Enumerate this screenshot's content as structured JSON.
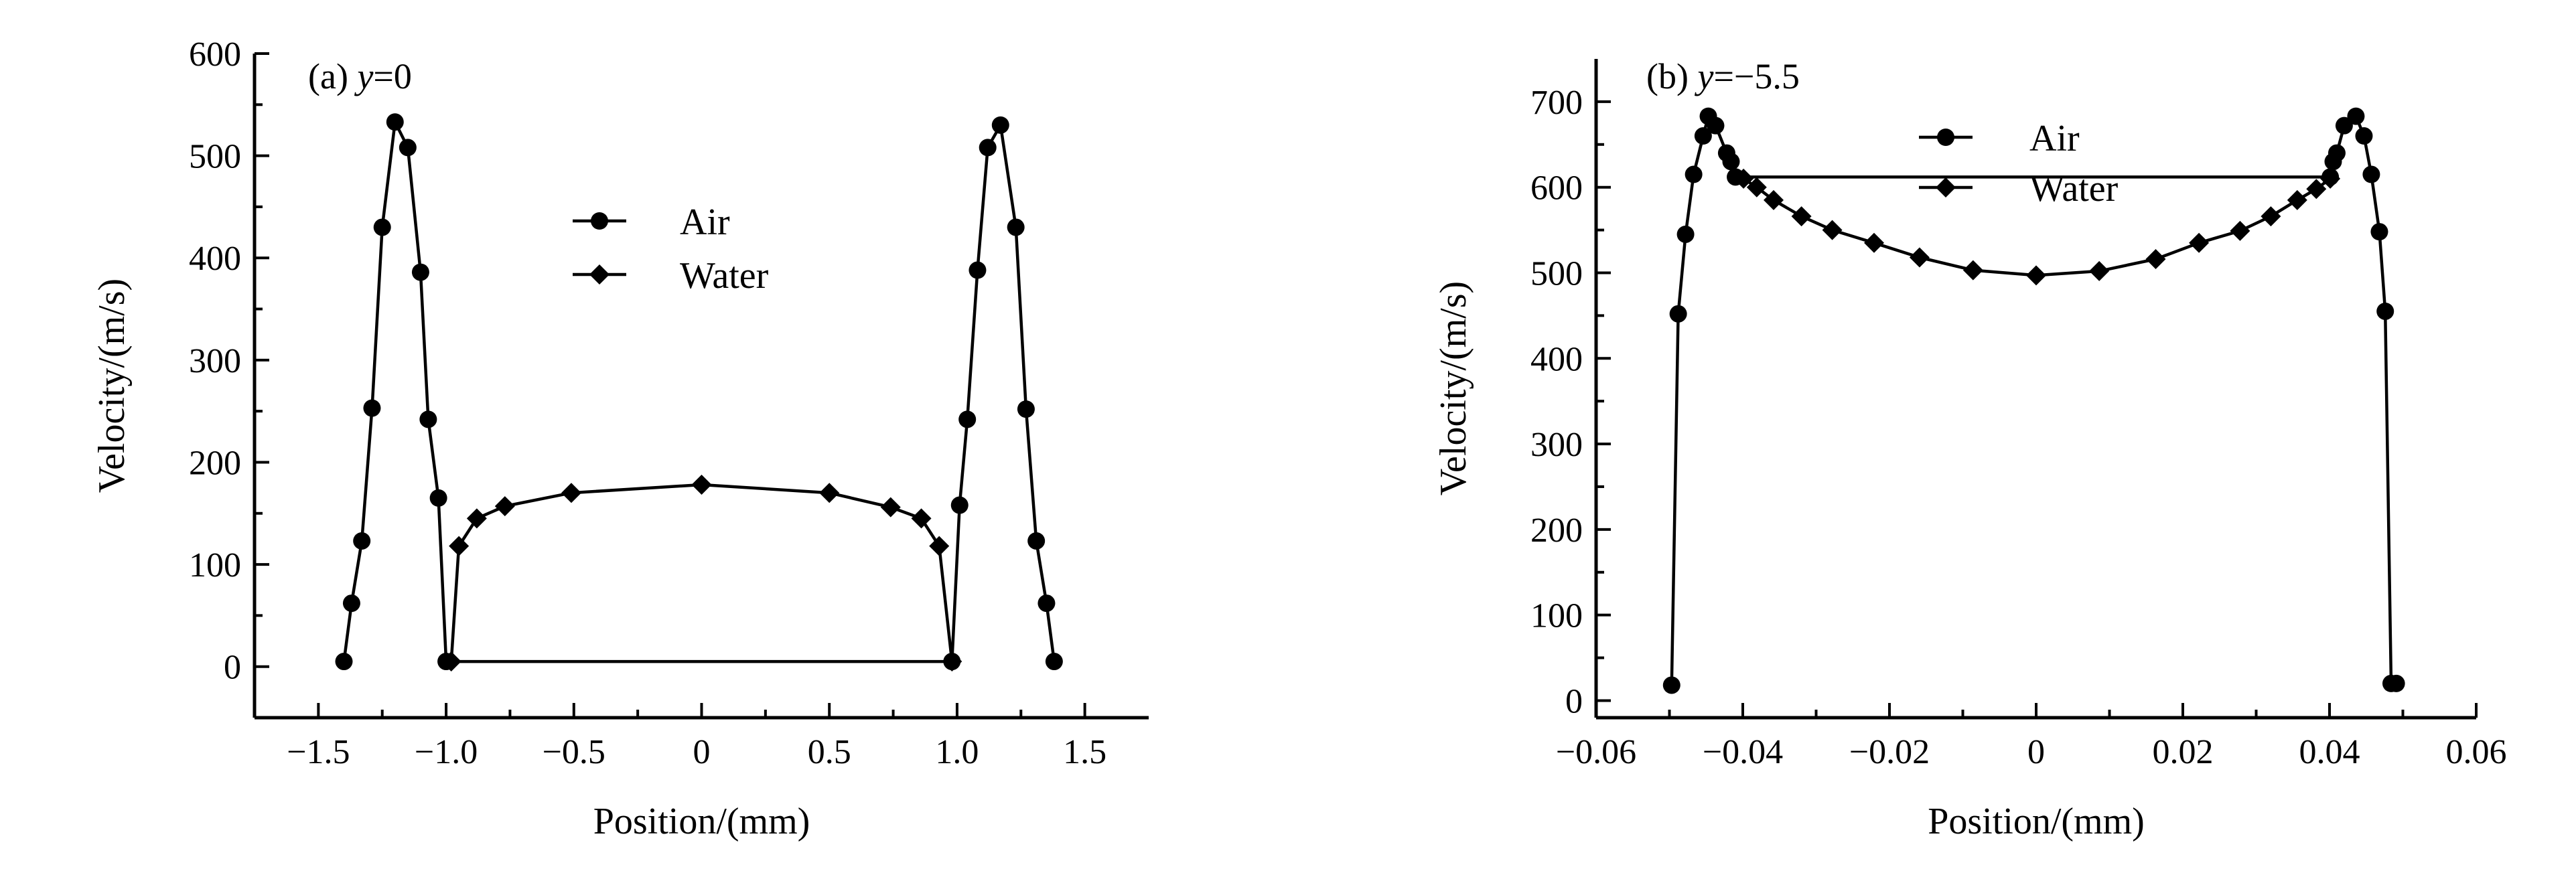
{
  "chart_data": [
    {
      "type": "line",
      "panel_label": "(a) y=0",
      "panel_label_parts": {
        "prefix": "(a) ",
        "var": "y",
        "suffix": "=0"
      },
      "xlabel": "Position/(mm)",
      "ylabel": "Velocity/(m/s)",
      "xlim": [
        -1.75,
        1.75
      ],
      "ylim": [
        -50,
        600
      ],
      "xticks": [
        -1.5,
        -1.0,
        -0.5,
        0,
        0.5,
        1.0,
        1.5
      ],
      "xtick_labels": [
        "−1.5",
        "−1.0",
        "−0.5",
        "0",
        "0.5",
        "1.0",
        "1.5"
      ],
      "yticks": [
        0,
        100,
        200,
        300,
        400,
        500,
        600
      ],
      "ytick_labels": [
        "0",
        "100",
        "200",
        "300",
        "400",
        "500",
        "600"
      ],
      "legend_position": "center",
      "series": [
        {
          "name": "Air",
          "marker": "circle",
          "x": [
            -1.4,
            -1.37,
            -1.33,
            -1.29,
            -1.25,
            -1.2,
            -1.15,
            -1.1,
            -1.07,
            -1.03,
            -1.0,
            0.98,
            1.01,
            1.04,
            1.08,
            1.12,
            1.17,
            1.23,
            1.27,
            1.31,
            1.35,
            1.38
          ],
          "y": [
            5,
            62,
            123,
            253,
            430,
            533,
            508,
            386,
            242,
            165,
            5,
            5,
            158,
            242,
            388,
            508,
            530,
            430,
            252,
            123,
            62,
            5
          ]
        },
        {
          "name": "Water",
          "marker": "diamond",
          "x": [
            -0.98,
            -0.95,
            -0.88,
            -0.77,
            -0.51,
            0,
            0.5,
            0.74,
            0.86,
            0.93,
            0.98
          ],
          "y": [
            5,
            118,
            145,
            157,
            170,
            178,
            170,
            156,
            145,
            118,
            5
          ]
        }
      ]
    },
    {
      "type": "line",
      "panel_label": "(b) y=−5.5",
      "panel_label_parts": {
        "prefix": "(b) ",
        "var": "y",
        "suffix": "=−5.5"
      },
      "xlabel": "Position/(mm)",
      "ylabel": "Velocity/(m/s)",
      "xlim": [
        -0.06,
        0.06
      ],
      "ylim": [
        -20,
        750
      ],
      "xticks": [
        -0.06,
        -0.04,
        -0.02,
        0,
        0.02,
        0.04,
        0.06
      ],
      "xtick_labels": [
        "−0.06",
        "−0.04",
        "−0.02",
        "0",
        "0.02",
        "0.04",
        "0.06"
      ],
      "yticks": [
        0,
        100,
        200,
        300,
        400,
        500,
        600,
        700
      ],
      "ytick_labels": [
        "0",
        "100",
        "200",
        "300",
        "400",
        "500",
        "600",
        "700"
      ],
      "legend_position": "top-center",
      "series": [
        {
          "name": "Air",
          "marker": "circle",
          "x": [
            -0.0497,
            -0.0488,
            -0.0478,
            -0.0467,
            -0.0454,
            -0.0447,
            -0.0437,
            -0.0422,
            -0.0416,
            -0.041,
            0.0401,
            0.0405,
            0.041,
            0.042,
            0.0436,
            0.0447,
            0.0457,
            0.0468,
            0.0476,
            0.0484,
            0.0491
          ],
          "y": [
            18,
            452,
            545,
            615,
            660,
            683,
            672,
            640,
            630,
            612,
            612,
            630,
            640,
            672,
            683,
            660,
            615,
            548,
            455,
            20,
            20
          ]
        },
        {
          "name": "Water",
          "marker": "diamond",
          "x": [
            -0.0399,
            -0.0381,
            -0.0358,
            -0.032,
            -0.0278,
            -0.0221,
            -0.0159,
            -0.0086,
            0,
            0.0086,
            0.0163,
            0.0222,
            0.0278,
            0.032,
            0.0356,
            0.0382,
            0.0401
          ],
          "y": [
            610,
            600,
            585,
            566,
            550,
            535,
            518,
            503,
            497,
            502,
            516,
            535,
            549,
            566,
            585,
            598,
            610
          ]
        }
      ]
    }
  ]
}
